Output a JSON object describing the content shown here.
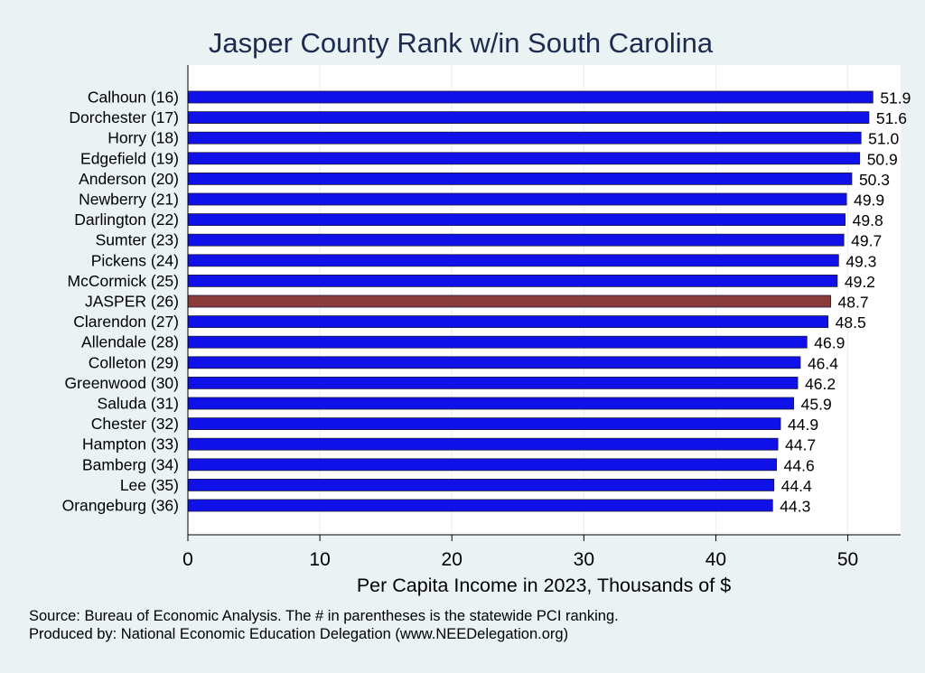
{
  "chart_data": {
    "type": "bar",
    "orientation": "horizontal",
    "title": "Jasper County Rank w/in South Carolina",
    "xlabel": "Per Capita Income in 2023, Thousands of $",
    "ylabel": "",
    "xlim": [
      0,
      54
    ],
    "xticks": [
      0,
      10,
      20,
      30,
      40,
      50
    ],
    "grid": true,
    "categories": [
      "Calhoun (16)",
      "Dorchester (17)",
      "Horry (18)",
      "Edgefield (19)",
      "Anderson (20)",
      "Newberry (21)",
      "Darlington (22)",
      "Sumter (23)",
      "Pickens (24)",
      "McCormick (25)",
      "JASPER (26)",
      "Clarendon (27)",
      "Allendale (28)",
      "Colleton (29)",
      "Greenwood (30)",
      "Saluda (31)",
      "Chester (32)",
      "Hampton (33)",
      "Bamberg (34)",
      "Lee (35)",
      "Orangeburg (36)"
    ],
    "values": [
      51.9,
      51.6,
      51.0,
      50.9,
      50.3,
      49.9,
      49.8,
      49.7,
      49.3,
      49.2,
      48.7,
      48.5,
      46.9,
      46.4,
      46.2,
      45.9,
      44.9,
      44.7,
      44.6,
      44.4,
      44.3
    ],
    "value_labels": [
      "51.9",
      "51.6",
      "51.0",
      "50.9",
      "50.3",
      "49.9",
      "49.8",
      "49.7",
      "49.3",
      "49.2",
      "48.7",
      "48.5",
      "46.9",
      "46.4",
      "46.2",
      "45.9",
      "44.9",
      "44.7",
      "44.6",
      "44.4",
      "44.3"
    ],
    "highlight_index": 10,
    "colors": {
      "bar": "#1010e8",
      "highlight": "#8b3a3a",
      "plot_background": "#ffffff",
      "page_background": "#eaf2f3",
      "grid": "#e6eff2",
      "title": "#1c2b4f"
    }
  },
  "notes": {
    "source": "Source: Bureau of Economic Analysis. The # in parentheses is the statewide PCI ranking.",
    "produced_by": "Produced by: National Economic Education Delegation (www.NEEDelegation.org)"
  }
}
